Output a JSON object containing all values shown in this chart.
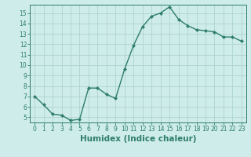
{
  "x": [
    0,
    1,
    2,
    3,
    4,
    5,
    6,
    7,
    8,
    9,
    10,
    11,
    12,
    13,
    14,
    15,
    16,
    17,
    18,
    19,
    20,
    21,
    22,
    23
  ],
  "y": [
    7.0,
    6.2,
    5.3,
    5.2,
    4.7,
    4.8,
    7.8,
    7.8,
    7.2,
    6.8,
    9.6,
    11.9,
    13.7,
    14.7,
    15.0,
    15.6,
    14.4,
    13.8,
    13.4,
    13.3,
    13.2,
    12.7,
    12.7,
    12.3
  ],
  "line_color": "#2e7d6e",
  "marker": "D",
  "markersize": 2.2,
  "linewidth": 1.0,
  "background_color": "#ceecea",
  "grid_color": "#aed4d0",
  "xlabel": "Humidex (Indice chaleur)",
  "xlim": [
    -0.5,
    23.5
  ],
  "ylim": [
    4.5,
    15.8
  ],
  "yticks": [
    5,
    6,
    7,
    8,
    9,
    10,
    11,
    12,
    13,
    14,
    15
  ],
  "xticks": [
    0,
    1,
    2,
    3,
    4,
    5,
    6,
    7,
    8,
    9,
    10,
    11,
    12,
    13,
    14,
    15,
    16,
    17,
    18,
    19,
    20,
    21,
    22,
    23
  ],
  "tick_fontsize": 5.5,
  "xlabel_fontsize": 7.5,
  "tick_color": "#2e7d6e"
}
